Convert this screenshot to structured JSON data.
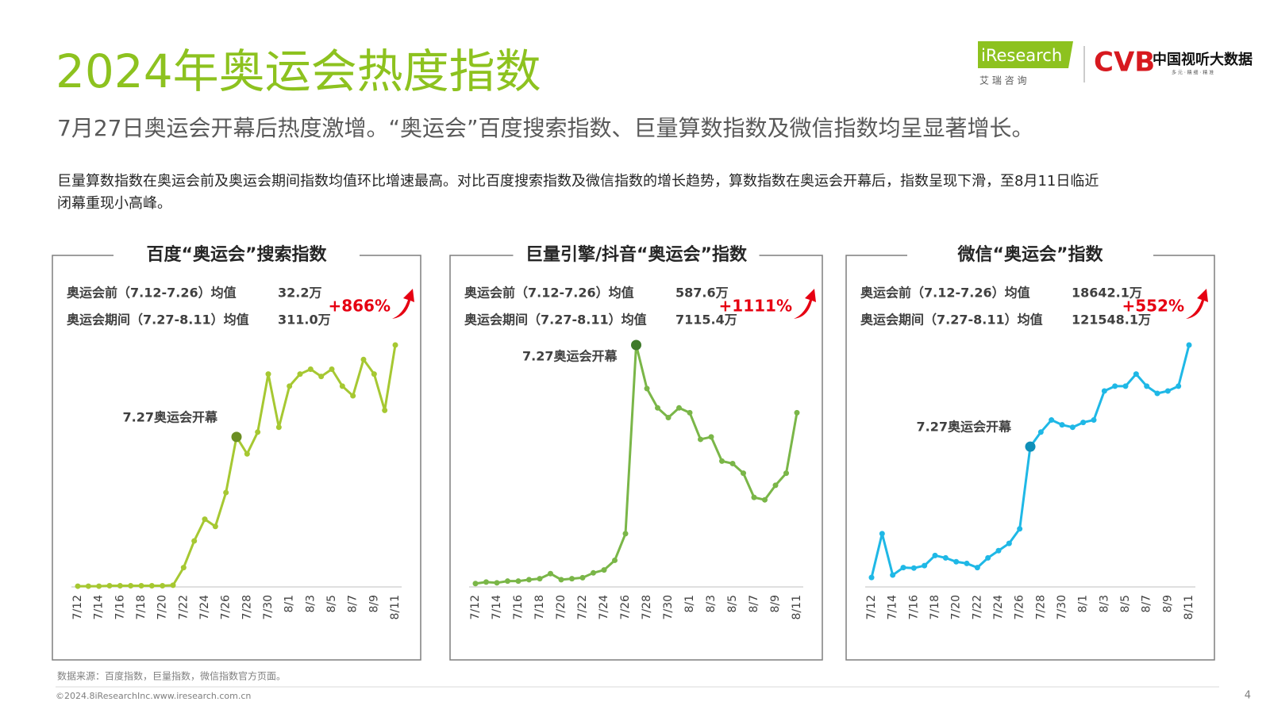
{
  "title": "2024年奥运会热度指数",
  "subtitle": "7月27日奥运会开幕后热度激增。“奥运会”百度搜索指数、巨量算数指数及微信指数均呈显著增长。",
  "body": [
    "巨量算数指数在奥运会前及奥运会期间指数均值环比增速最高。对比百度搜索指数及微信指数的增长趋势，算数指数在奥运会开幕后，指数呈现下滑，至8月11日临近",
    "闭幕重现小高峰。"
  ],
  "logo": {
    "iresearch": "iResearch",
    "iresearch_cn": "艾 瑞 咨 询",
    "cvb": "CVB",
    "cvb_cn": "中国视听大数据",
    "cvb_sub": "多 元 · 精 细 · 精 准"
  },
  "source": "数据来源：百度指数，巨量指数，微信指数官方页面。",
  "copyright": "©2024.8iResearchInc.www.iresearch.com.cn",
  "page": "4",
  "chart_data": [
    {
      "type": "line",
      "title": "百度“奥运会”搜索指数",
      "stats": [
        {
          "label": "奥运会前（7.12-7.26）均值",
          "value": "32.2万"
        },
        {
          "label": "奥运会期间（7.27-8.11）均值",
          "value": "311.0万"
        }
      ],
      "growth": "+866%",
      "annotation": "7.27奥运会开幕",
      "categories": [
        "7/12",
        null,
        "7/14",
        null,
        "7/16",
        null,
        "7/18",
        null,
        "7/20",
        null,
        "7/22",
        null,
        "7/24",
        null,
        "7/26",
        null,
        "7/28",
        null,
        "7/30",
        null,
        "8/1",
        null,
        "8/3",
        null,
        "8/5",
        null,
        "8/7",
        null,
        "8/9",
        null,
        "8/11"
      ],
      "series": [
        {
          "name": "百度",
          "color": "#a6c832",
          "marker_color": "#6b8e23",
          "values": [
            0.3,
            0.3,
            0.3,
            0.5,
            0.5,
            0.5,
            0.5,
            0.5,
            0.5,
            0.7,
            8,
            19,
            28,
            25,
            39,
            62,
            55,
            64,
            88,
            66,
            83,
            88,
            90,
            87,
            90,
            83,
            79,
            94,
            88,
            73,
            100
          ]
        }
      ],
      "ylim": [
        0,
        100
      ]
    },
    {
      "type": "line",
      "title": "巨量引擎/抖音“奥运会”指数",
      "stats": [
        {
          "label": "奥运会前（7.12-7.26）均值",
          "value": "587.6万"
        },
        {
          "label": "奥运会期间（7.27-8.11）均值",
          "value": "7115.4万"
        }
      ],
      "growth": "+1111%",
      "annotation": "7.27奥运会开幕",
      "categories": [
        "7/12",
        null,
        "7/14",
        null,
        "7/16",
        null,
        "7/18",
        null,
        "7/20",
        null,
        "7/22",
        null,
        "7/24",
        null,
        "7/26",
        null,
        "7/28",
        null,
        "7/30",
        null,
        "8/1",
        null,
        "8/3",
        null,
        "8/5",
        null,
        "8/7",
        null,
        "8/9",
        null,
        "8/11"
      ],
      "series": [
        {
          "name": "抖音",
          "color": "#7ab648",
          "marker_color": "#3f7a2a",
          "values": [
            1.4,
            2,
            1.7,
            2.4,
            2.4,
            3,
            3.4,
            5.5,
            3,
            3.4,
            3.8,
            5.8,
            7,
            11,
            22,
            100,
            82,
            74,
            70,
            74,
            72,
            61,
            62,
            52,
            51,
            47,
            37,
            36,
            42,
            47,
            72
          ]
        }
      ],
      "ylim": [
        0,
        100
      ]
    },
    {
      "type": "line",
      "title": "微信“奥运会”指数",
      "stats": [
        {
          "label": "奥运会前（7.12-7.26）均值",
          "value": "18642.1万"
        },
        {
          "label": "奥运会期间（7.27-8.11）均值",
          "value": "121548.1万"
        }
      ],
      "growth": "+552%",
      "annotation": "7.27奥运会开幕",
      "categories": [
        "7/12",
        null,
        "7/14",
        null,
        "7/16",
        null,
        "7/18",
        null,
        "7/20",
        null,
        "7/22",
        null,
        "7/24",
        null,
        "7/26",
        null,
        "7/28",
        null,
        "7/30",
        null,
        "8/1",
        null,
        "8/3",
        null,
        "8/5",
        null,
        "8/7",
        null,
        "8/9",
        null,
        "8/11"
      ],
      "series": [
        {
          "name": "微信",
          "color": "#1fb8e6",
          "marker_color": "#0f8fb8",
          "values": [
            3.9,
            22,
            4.9,
            8,
            7.8,
            8.8,
            13,
            12,
            10.4,
            9.7,
            8,
            12,
            15,
            18,
            24,
            58,
            64,
            69,
            67,
            66,
            68,
            69,
            81,
            83,
            83,
            88,
            83,
            80,
            81,
            83,
            100
          ]
        }
      ],
      "ylim": [
        0,
        100
      ]
    }
  ]
}
